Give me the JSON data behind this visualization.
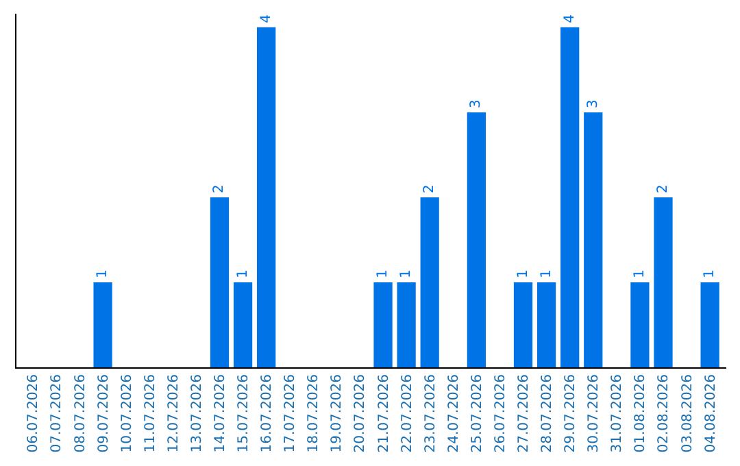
{
  "chart_data": {
    "type": "bar",
    "categories": [
      "06.07.2026",
      "07.07.2026",
      "08.07.2026",
      "09.07.2026",
      "10.07.2026",
      "11.07.2026",
      "12.07.2026",
      "13.07.2026",
      "14.07.2026",
      "15.07.2026",
      "16.07.2026",
      "17.07.2026",
      "18.07.2026",
      "19.07.2026",
      "20.07.2026",
      "21.07.2026",
      "22.07.2026",
      "23.07.2026",
      "24.07.2026",
      "25.07.2026",
      "26.07.2026",
      "27.07.2026",
      "28.07.2026",
      "29.07.2026",
      "30.07.2026",
      "31.07.2026",
      "01.08.2026",
      "02.08.2026",
      "03.08.2026",
      "04.08.2026"
    ],
    "values": [
      0,
      0,
      0,
      1,
      0,
      0,
      0,
      0,
      2,
      1,
      4,
      0,
      0,
      0,
      0,
      1,
      1,
      2,
      0,
      3,
      0,
      1,
      1,
      4,
      3,
      0,
      1,
      2,
      0,
      1
    ],
    "value_labels": [
      null,
      null,
      null,
      "1",
      null,
      null,
      null,
      null,
      "2",
      "1",
      "4",
      null,
      null,
      null,
      null,
      "1",
      "1",
      "2",
      null,
      "3",
      null,
      "1",
      "1",
      "4",
      "3",
      null,
      "1",
      "2",
      null,
      "1"
    ],
    "color": "#0073e6",
    "ylim": [
      0,
      4.16
    ],
    "tick_labels": "x"
  }
}
